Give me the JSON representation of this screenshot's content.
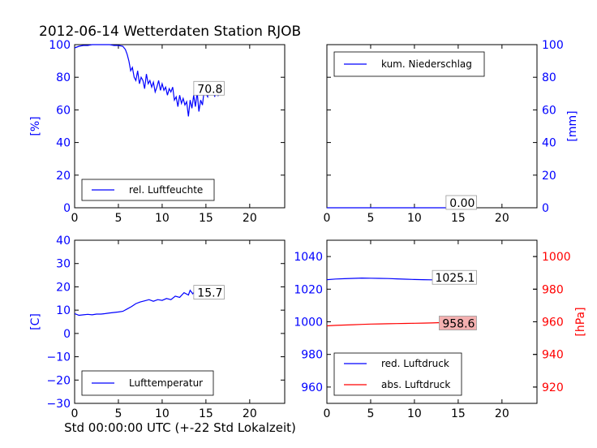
{
  "title": "2012-06-14 Wetterdaten Station RJOB",
  "xlabel": "Std 00:00:00 UTC (+-22 Std Lokalzeit)",
  "colors": {
    "blue": "#0000ff",
    "red": "#ff0000",
    "red_box": "#f4b0b0"
  },
  "chart_data": [
    {
      "type": "line",
      "id": "humidity",
      "ylabel": "[%]",
      "xlim": [
        0,
        24
      ],
      "ylim": [
        0,
        100
      ],
      "xticks": [
        "0",
        "5",
        "10",
        "15",
        "20"
      ],
      "yticks": [
        "0",
        "20",
        "40",
        "60",
        "80",
        "100"
      ],
      "legend": "rel. Luftfeuchte",
      "legend_position": "bottom-left",
      "last_value_label": "70.8",
      "series": [
        {
          "name": "rel. Luftfeuchte",
          "color": "#0000ff",
          "x": [
            0,
            0.5,
            1,
            1.5,
            2,
            2.5,
            3,
            3.5,
            4,
            4.5,
            5,
            5.5,
            5.8,
            6,
            6.2,
            6.4,
            6.6,
            6.8,
            7,
            7.2,
            7.4,
            7.6,
            7.8,
            8,
            8.2,
            8.4,
            8.6,
            8.8,
            9,
            9.2,
            9.4,
            9.6,
            9.8,
            10,
            10.2,
            10.4,
            10.6,
            10.8,
            11,
            11.2,
            11.4,
            11.6,
            11.8,
            12,
            12.2,
            12.4,
            12.6,
            12.8,
            13,
            13.2,
            13.4,
            13.6,
            13.8,
            14,
            14.2,
            14.4,
            14.6,
            14.8,
            15,
            15.2,
            15.4,
            15.6,
            15.8,
            16,
            16.2,
            16.4,
            16.6,
            16.8,
            17
          ],
          "y": [
            98,
            99,
            99.5,
            99.5,
            100,
            100,
            100,
            100,
            100,
            99.5,
            99.5,
            99,
            97,
            94,
            90,
            84,
            86,
            80,
            78,
            84,
            76,
            80,
            78,
            73,
            82,
            76,
            78,
            74,
            77,
            71,
            74,
            78,
            72,
            76,
            72,
            74,
            69,
            73,
            71,
            74,
            66,
            68,
            62,
            69,
            64,
            67,
            63,
            65,
            56,
            66,
            61,
            69,
            62,
            71,
            59,
            66,
            63,
            72,
            70,
            68,
            75,
            70,
            73,
            68,
            74,
            69,
            72,
            70,
            71
          ]
        }
      ]
    },
    {
      "type": "line",
      "id": "precipitation",
      "ylabel": "[mm]",
      "xlim": [
        0,
        24
      ],
      "ylim": [
        0,
        100
      ],
      "xticks": [
        "0",
        "5",
        "10",
        "15",
        "20"
      ],
      "yticks": [
        "0",
        "20",
        "40",
        "60",
        "80",
        "100"
      ],
      "legend": "kum. Niederschlag",
      "legend_position": "top-left",
      "last_value_label": "0.00",
      "series": [
        {
          "name": "kum. Niederschlag",
          "color": "#0000ff",
          "x": [
            0,
            17
          ],
          "y": [
            0,
            0
          ]
        }
      ]
    },
    {
      "type": "line",
      "id": "temperature",
      "ylabel": "[C]",
      "xlim": [
        0,
        24
      ],
      "ylim": [
        -30,
        40
      ],
      "xticks": [
        "0",
        "5",
        "10",
        "15",
        "20"
      ],
      "yticks": [
        "−30",
        "−20",
        "−10",
        "0",
        "10",
        "20",
        "30",
        "40"
      ],
      "legend": "Lufttemperatur",
      "legend_position": "bottom-left",
      "last_value_label": "15.7",
      "series": [
        {
          "name": "Lufttemperatur",
          "color": "#0000ff",
          "x": [
            0,
            0.5,
            1,
            1.5,
            2,
            2.5,
            3,
            3.5,
            4,
            4.5,
            5,
            5.5,
            6,
            6.5,
            7,
            7.5,
            8,
            8.5,
            9,
            9.5,
            10,
            10.5,
            11,
            11.5,
            12,
            12.5,
            13,
            13.2,
            13.5,
            13.8,
            14,
            14.3,
            14.6,
            15,
            15.5,
            16,
            16.5,
            17
          ],
          "y": [
            8.5,
            7.8,
            8,
            8.2,
            8,
            8.3,
            8.3,
            8.5,
            8.8,
            9,
            9.2,
            9.5,
            10.5,
            11.5,
            12.8,
            13.5,
            14,
            14.5,
            13.8,
            14.5,
            14.2,
            15,
            14.5,
            16,
            15.5,
            17.5,
            16.5,
            18.5,
            17,
            18.5,
            16,
            17.5,
            16.2,
            16.5,
            16.2,
            16,
            15.8,
            15.7
          ]
        }
      ]
    },
    {
      "type": "line",
      "id": "pressure",
      "ylabel": "",
      "ylabel_right": "[hPa]",
      "xlim": [
        0,
        24
      ],
      "ylim": [
        950,
        1050
      ],
      "ylim_right": [
        910,
        1010
      ],
      "xticks": [
        "0",
        "5",
        "10",
        "15",
        "20"
      ],
      "yticks": [
        "960",
        "980",
        "1000",
        "1020",
        "1040"
      ],
      "yticks_right": [
        "920",
        "940",
        "960",
        "980",
        "1000"
      ],
      "legend_position": "bottom-left",
      "legend_entries": [
        "red. Luftdruck",
        "abs. Luftdruck"
      ],
      "last_value_labels": [
        "1025.1",
        "958.6"
      ],
      "series": [
        {
          "name": "red. Luftdruck",
          "color": "#0000ff",
          "axis": "left",
          "x": [
            0,
            1,
            2,
            3,
            4,
            5,
            6,
            7,
            8,
            9,
            10,
            11,
            12,
            13,
            14,
            15,
            16,
            17
          ],
          "y": [
            1025.8,
            1026.2,
            1026.4,
            1026.6,
            1026.8,
            1026.7,
            1026.6,
            1026.5,
            1026.3,
            1026.1,
            1025.9,
            1025.8,
            1025.7,
            1025.6,
            1025.4,
            1025.3,
            1025.2,
            1025.1
          ]
        },
        {
          "name": "abs. Luftdruck",
          "color": "#ff0000",
          "axis": "right",
          "x": [
            0,
            1,
            2,
            3,
            4,
            5,
            6,
            7,
            8,
            9,
            10,
            11,
            12,
            13,
            14,
            15,
            16,
            17
          ],
          "y": [
            957.5,
            957.8,
            958.0,
            958.2,
            958.4,
            958.6,
            958.7,
            958.8,
            958.9,
            959.0,
            959.1,
            959.2,
            959.3,
            959.5,
            959.2,
            958.9,
            958.7,
            958.6
          ]
        }
      ]
    }
  ]
}
